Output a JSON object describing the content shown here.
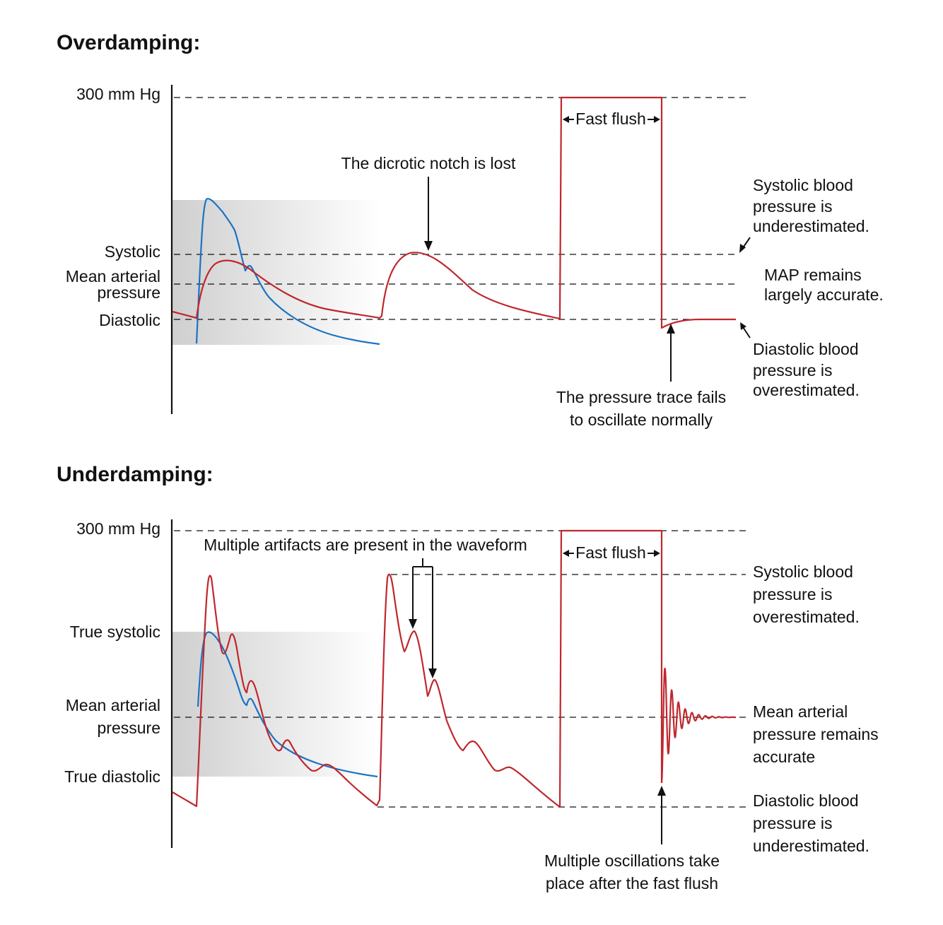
{
  "colors": {
    "true_waveform": "#1a73c4",
    "measured_waveform": "#c0272d",
    "shading": "#d3d3d3"
  },
  "overdamping": {
    "title": "Overdamping:",
    "axis_labels": {
      "top": "300 mm Hg",
      "systolic": "Systolic",
      "map_line1": "Mean arterial",
      "map_line2": "pressure",
      "diastolic": "Diastolic"
    },
    "fast_flush": "Fast flush",
    "notch_callout": "The dicrotic notch is lost",
    "trace_callout": [
      "The pressure trace fails",
      "to oscillate normally"
    ],
    "right_notes": {
      "systolic": [
        "Systolic blood",
        "pressure is",
        "underestimated."
      ],
      "map": [
        "MAP remains",
        "largely accurate."
      ],
      "diastolic": [
        "Diastolic blood",
        "pressure is",
        "overestimated."
      ]
    }
  },
  "underdamping": {
    "title": "Underdamping:",
    "axis_labels": {
      "top": "300 mm Hg",
      "true_systolic": "True systolic",
      "map_line1": "Mean arterial",
      "map_line2": "pressure",
      "true_diastolic": "True diastolic"
    },
    "fast_flush": "Fast flush",
    "artifacts_callout": "Multiple artifacts are present in the waveform",
    "oscillation_callout": [
      "Multiple oscillations take",
      "place after the fast flush"
    ],
    "right_notes": {
      "systolic": [
        "Systolic blood",
        "pressure is",
        "overestimated."
      ],
      "map": [
        "Mean arterial",
        "pressure remains",
        "accurate"
      ],
      "diastolic": [
        "Diastolic blood",
        "pressure is",
        "underestimated."
      ]
    }
  }
}
